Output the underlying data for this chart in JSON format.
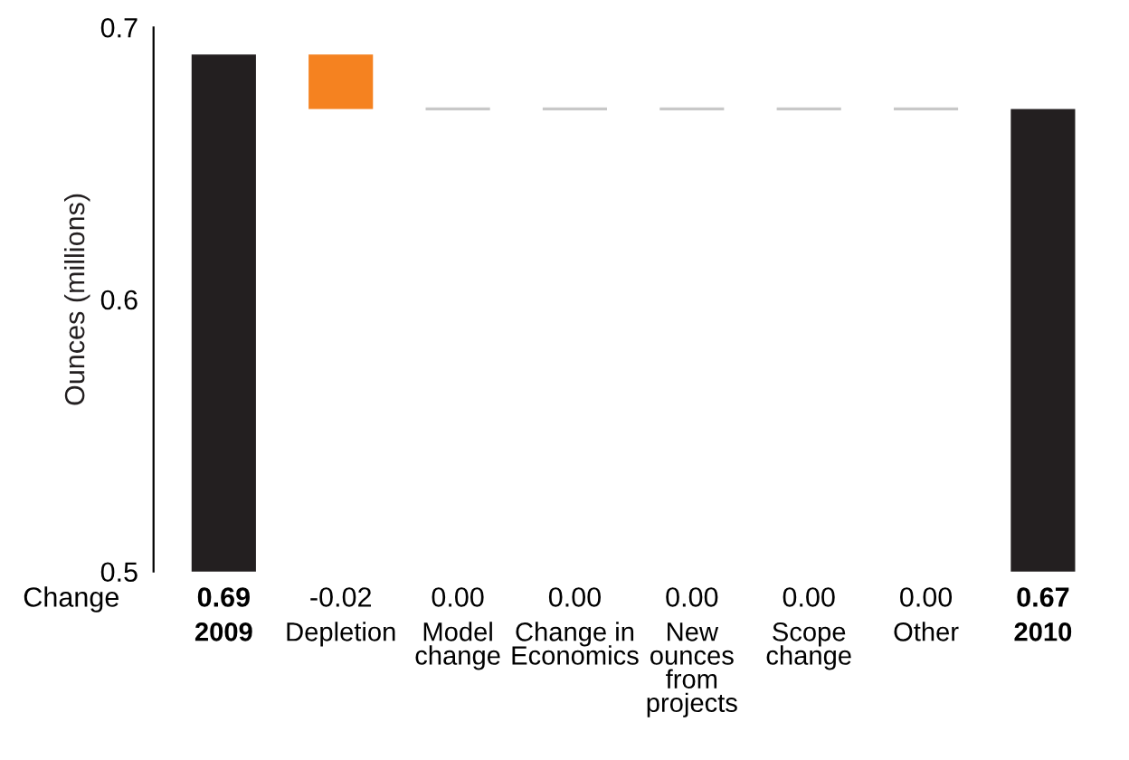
{
  "chart_data": {
    "type": "bar",
    "ylabel": "Ounces (millions)",
    "categories": [
      "2009",
      "Depletion",
      "Model\nchange",
      "Change in\nEconomics",
      "New\nounces\nfrom\nprojects",
      "Scope\nchange",
      "Other",
      "2010"
    ],
    "values": [
      0.69,
      -0.02,
      0.0,
      0.0,
      0.0,
      0.0,
      0.0,
      0.67
    ],
    "base": [
      0,
      0.69,
      0.67,
      0.67,
      0.67,
      0.67,
      0.67,
      0
    ],
    "colors": [
      "#231f20",
      "#f58220",
      "#c8c8c8",
      "#c8c8c8",
      "#c8c8c8",
      "#c8c8c8",
      "#c8c8c8",
      "#231f20"
    ],
    "value_labels": [
      "0.69",
      "-0.02",
      "0.00",
      "0.00",
      "0.00",
      "0.00",
      "0.00",
      "0.67"
    ],
    "annotations": [
      "Change"
    ],
    "ylim": [
      0.5,
      0.7
    ],
    "yticks": [
      0.5,
      0.6,
      0.7
    ],
    "grid": false,
    "legend": false
  }
}
